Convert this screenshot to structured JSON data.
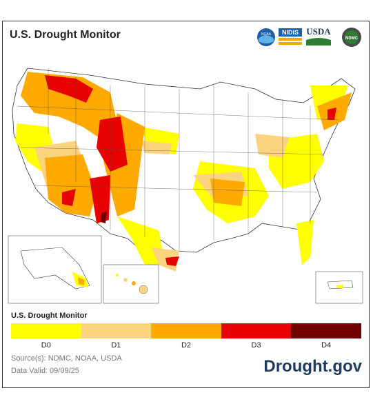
{
  "title": "U.S. Drought Monitor",
  "logos": {
    "noaa": "NOAA",
    "nidis": "NIDIS",
    "usda": "USDA",
    "ndmc": "NDMC"
  },
  "legend": {
    "title": "U.S. Drought Monitor",
    "categories": [
      {
        "label": "D0",
        "color": "#ffff00"
      },
      {
        "label": "D1",
        "color": "#fcd37f"
      },
      {
        "label": "D2",
        "color": "#ffaa00"
      },
      {
        "label": "D3",
        "color": "#e60000"
      },
      {
        "label": "D4",
        "color": "#730000"
      }
    ]
  },
  "footer": {
    "source": "Source(s): NDMC, NOAA, USDA",
    "valid": "Data Valid: 09/09/25",
    "brand": "Drought.gov"
  }
}
